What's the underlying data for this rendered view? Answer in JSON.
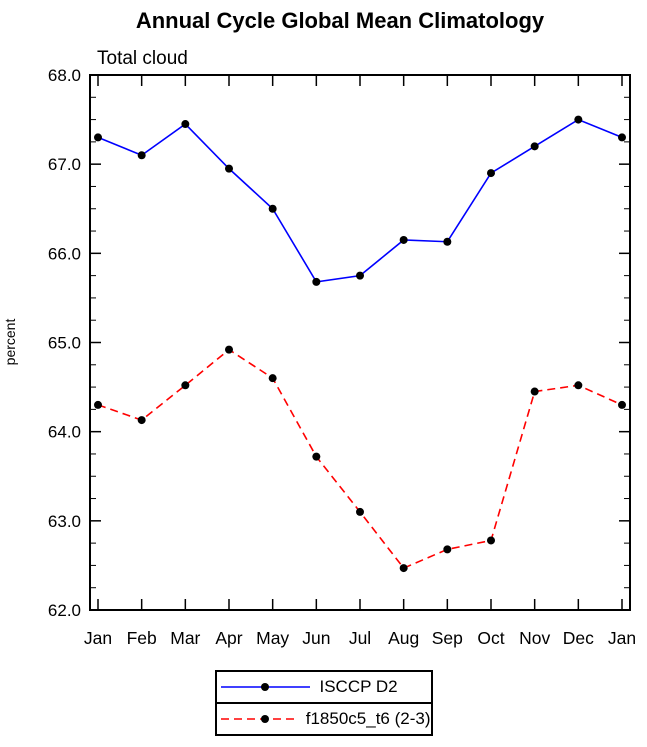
{
  "chart_data": {
    "type": "line",
    "title": "Annual Cycle Global Mean Climatology",
    "subtitle": "Total cloud",
    "ylabel": "percent",
    "xlabel": "",
    "categories": [
      "Jan",
      "Feb",
      "Mar",
      "Apr",
      "May",
      "Jun",
      "Jul",
      "Aug",
      "Sep",
      "Oct",
      "Nov",
      "Dec",
      "Jan"
    ],
    "ylim": [
      62.0,
      68.0
    ],
    "ytick_step": 1.0,
    "ytick_minor_step": 0.25,
    "ytick_labels": [
      "62.0",
      "63.0",
      "64.0",
      "65.0",
      "66.0",
      "67.0",
      "68.0"
    ],
    "grid": false,
    "legend_position": "bottom-center",
    "frame_color": "#000000",
    "series": [
      {
        "name": "ISCCP D2",
        "color": "#0000ff",
        "style": "solid",
        "marker": "filled-circle",
        "marker_color": "#000000",
        "values": [
          67.3,
          67.1,
          67.45,
          66.95,
          66.5,
          65.68,
          65.75,
          66.15,
          66.13,
          66.9,
          67.2,
          67.5,
          67.3
        ]
      },
      {
        "name": "f1850c5_t6 (2-3)",
        "color": "#ff0000",
        "style": "dashed",
        "marker": "filled-circle",
        "marker_color": "#000000",
        "values": [
          64.3,
          64.13,
          64.52,
          64.92,
          64.6,
          63.72,
          63.1,
          62.47,
          62.68,
          62.78,
          64.45,
          64.52,
          64.3
        ]
      }
    ]
  }
}
